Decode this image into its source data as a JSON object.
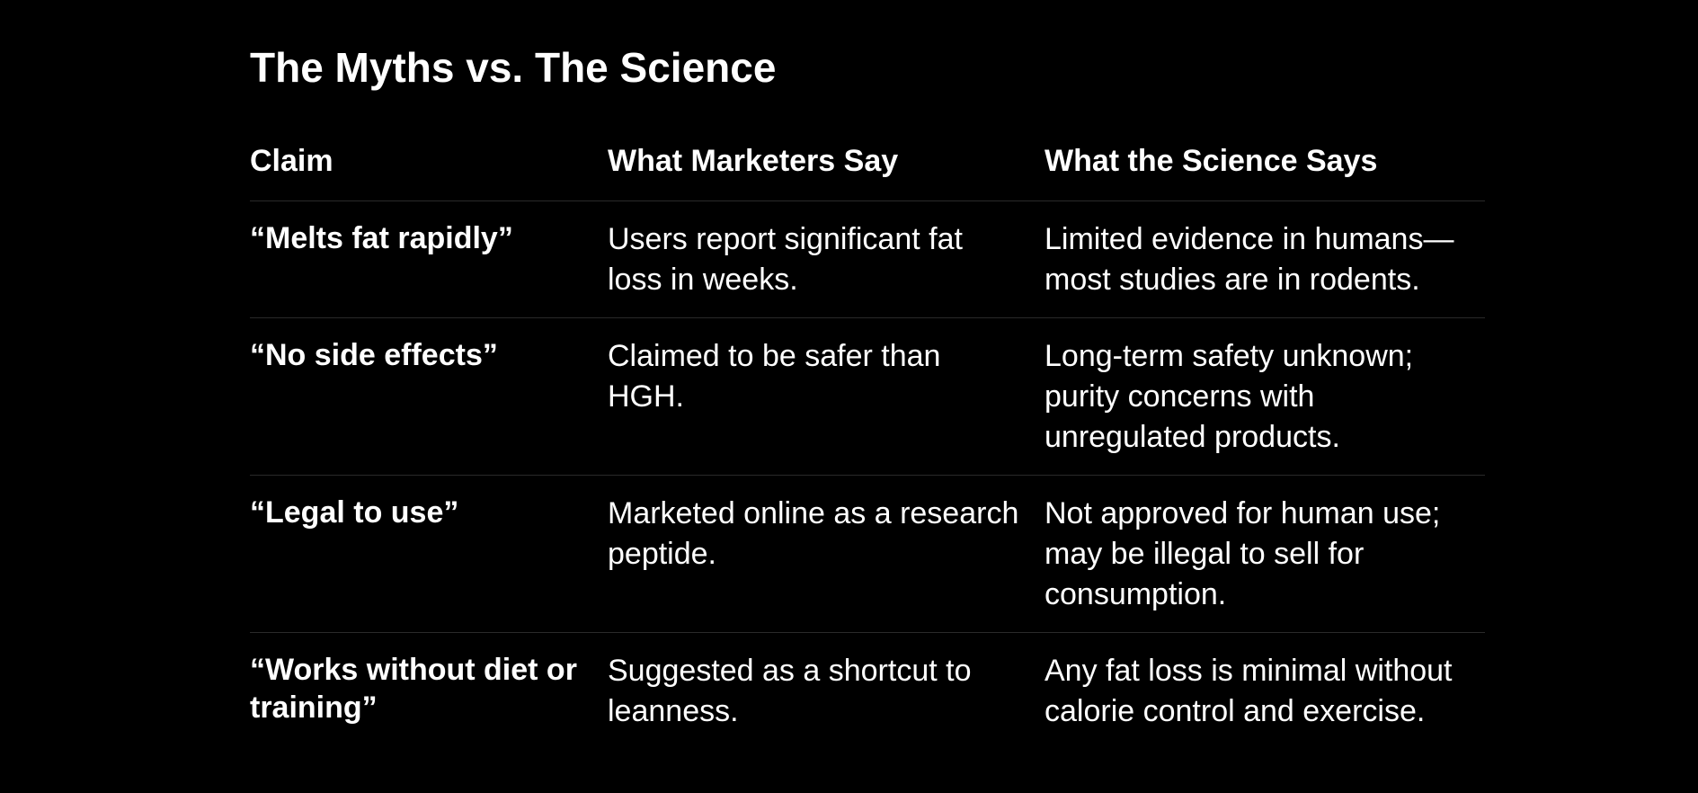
{
  "title": "The Myths vs. The Science",
  "table": {
    "headers": [
      "Claim",
      "What Marketers Say",
      "What the Science Says"
    ],
    "rows": [
      {
        "claim": "“Melts fat rapidly”",
        "marketers": "Users report significant fat loss in weeks.",
        "science": "Limited evidence in humans—most studies are in rodents."
      },
      {
        "claim": "“No side effects”",
        "marketers": "Claimed to be safer than HGH.",
        "science": "Long-term safety unknown; purity concerns with unregulated products."
      },
      {
        "claim": "“Legal to use”",
        "marketers": "Marketed online as a research peptide.",
        "science": "Not approved for human use; may be illegal to sell for consumption."
      },
      {
        "claim": "“Works without diet or training”",
        "marketers": "Suggested as a shortcut to leanness.",
        "science": "Any fat loss is minimal without calorie control and exercise."
      }
    ]
  }
}
